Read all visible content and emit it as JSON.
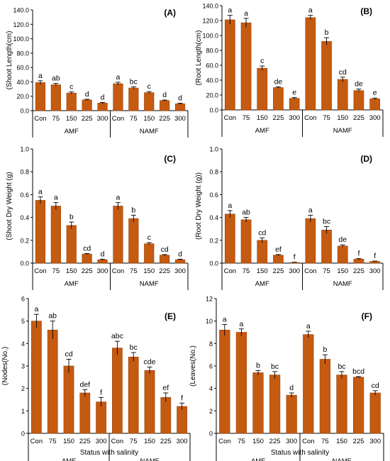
{
  "colors": {
    "bar": "#c55a11",
    "bar_edge": "#9a4308",
    "axis": "#000000",
    "error": "#000000",
    "text": "#000000"
  },
  "chart_data": [
    {
      "type": "bar",
      "panel_label": "(A)",
      "ylabel": "(Shoot Length(cm)",
      "xlabel": "",
      "ylim": [
        0,
        140
      ],
      "yticks": [
        "0.0",
        "20.0",
        "40.0",
        "60.0",
        "80.0",
        "100.0",
        "120.0",
        "140.0"
      ],
      "groups": [
        "AMF",
        "NAMF"
      ],
      "categories": [
        "Con",
        "75",
        "150",
        "225",
        "300",
        "Con",
        "75",
        "150",
        "225",
        "300"
      ],
      "values": [
        39,
        36,
        24.5,
        15,
        10.5,
        37.5,
        31.5,
        25,
        14,
        9.5
      ],
      "errors": [
        2.5,
        2,
        1.5,
        0.8,
        0.8,
        2,
        1.5,
        1.5,
        0.8,
        0.8
      ],
      "letters": [
        "a",
        "ab",
        "c",
        "d",
        "d",
        "a",
        "bc",
        "c",
        "d",
        "d"
      ],
      "grid": false
    },
    {
      "type": "bar",
      "panel_label": "(B)",
      "ylabel": "(Root Length(cm)",
      "xlabel": "",
      "ylim": [
        0,
        140
      ],
      "yticks": [
        "0.0",
        "20.0",
        "40.0",
        "60.0",
        "80.0",
        "100.0",
        "120.0",
        "140.0"
      ],
      "groups": [
        "AMF",
        "NAMF"
      ],
      "categories": [
        "Con",
        "75",
        "150",
        "225",
        "300",
        "Con",
        "75",
        "150",
        "225",
        "300"
      ],
      "values": [
        121,
        117,
        56,
        30,
        15.5,
        124,
        92,
        41,
        26,
        15
      ],
      "errors": [
        6,
        6,
        3,
        1,
        1,
        3,
        5,
        3,
        2,
        1
      ],
      "letters": [
        "a",
        "a",
        "c",
        "de",
        "e",
        "a",
        "b",
        "cd",
        "de",
        "e"
      ],
      "grid": false
    },
    {
      "type": "bar",
      "panel_label": "(C)",
      "ylabel": "(Shoot Dry Weight (g)",
      "xlabel": "",
      "ylim": [
        0,
        1
      ],
      "yticks": [
        "0.0",
        "0.2",
        "0.4",
        "0.6",
        "0.8",
        "1.0"
      ],
      "groups": [
        "AMF",
        "NAMF"
      ],
      "categories": [
        "Con",
        "75",
        "150",
        "225",
        "300",
        "Con",
        "75",
        "150",
        "225",
        "300"
      ],
      "values": [
        0.55,
        0.5,
        0.33,
        0.08,
        0.03,
        0.5,
        0.39,
        0.17,
        0.07,
        0.03
      ],
      "errors": [
        0.03,
        0.03,
        0.03,
        0.005,
        0.005,
        0.03,
        0.03,
        0.01,
        0.005,
        0.005
      ],
      "letters": [
        "a",
        "a",
        "b",
        "cd",
        "d",
        "a",
        "b",
        "c",
        "cd",
        "d"
      ],
      "grid": false
    },
    {
      "type": "bar",
      "panel_label": "(D)",
      "ylabel": "(Root Dry Weight (g))",
      "xlabel": "",
      "ylim": [
        0,
        1
      ],
      "yticks": [
        "0.0",
        "0.2",
        "0.4",
        "0.6",
        "0.8",
        "1.0"
      ],
      "groups": [
        "AMF",
        "NAMF"
      ],
      "categories": [
        "Con",
        "75",
        "150",
        "225",
        "300",
        "Con",
        "75",
        "150",
        "225",
        "300"
      ],
      "values": [
        0.43,
        0.38,
        0.2,
        0.07,
        0.005,
        0.39,
        0.29,
        0.15,
        0.035,
        0.015
      ],
      "errors": [
        0.03,
        0.02,
        0.02,
        0.005,
        0.003,
        0.03,
        0.03,
        0.01,
        0.005,
        0.003
      ],
      "letters": [
        "a",
        "ab",
        "cd",
        "ef",
        "f",
        "a",
        "bc",
        "de",
        "f",
        "f"
      ],
      "grid": false
    },
    {
      "type": "bar",
      "panel_label": "(E)",
      "ylabel": "(Nodes(No.)",
      "xlabel": "Status with salinity",
      "ylim": [
        0,
        6
      ],
      "yticks": [
        "0",
        "1",
        "2",
        "3",
        "4",
        "5",
        "6"
      ],
      "groups": [
        "AMF",
        "NAMF"
      ],
      "categories": [
        "Con",
        "75",
        "150",
        "225",
        "300",
        "Con",
        "75",
        "150",
        "225",
        "300"
      ],
      "values": [
        5.0,
        4.6,
        3.0,
        1.8,
        1.4,
        3.8,
        3.4,
        2.8,
        1.6,
        1.2
      ],
      "errors": [
        0.3,
        0.4,
        0.3,
        0.15,
        0.2,
        0.3,
        0.2,
        0.15,
        0.2,
        0.15
      ],
      "letters": [
        "a",
        "ab",
        "cd",
        "def",
        "f",
        "abc",
        "bc",
        "cde",
        "ef",
        "f"
      ],
      "grid": false
    },
    {
      "type": "bar",
      "panel_label": "(F)",
      "ylabel": "(Leaves(No.)",
      "xlabel": "Status with salinity",
      "ylim": [
        0,
        12
      ],
      "yticks": [
        "0",
        "2",
        "4",
        "6",
        "8",
        "10",
        "12"
      ],
      "groups": [
        "AMF",
        "NAMF"
      ],
      "categories": [
        "Con",
        "75",
        "150",
        "225",
        "300",
        "Con",
        "75",
        "150",
        "225",
        "300"
      ],
      "values": [
        9.2,
        9.0,
        5.4,
        5.2,
        3.4,
        8.8,
        6.6,
        5.2,
        5.0,
        3.6
      ],
      "errors": [
        0.5,
        0.3,
        0.2,
        0.3,
        0.2,
        0.3,
        0.4,
        0.3,
        0.05,
        0.2
      ],
      "letters": [
        "a",
        "a",
        "b",
        "bc",
        "d",
        "a",
        "b",
        "bc",
        "bcd",
        "cd"
      ],
      "grid": false
    }
  ]
}
